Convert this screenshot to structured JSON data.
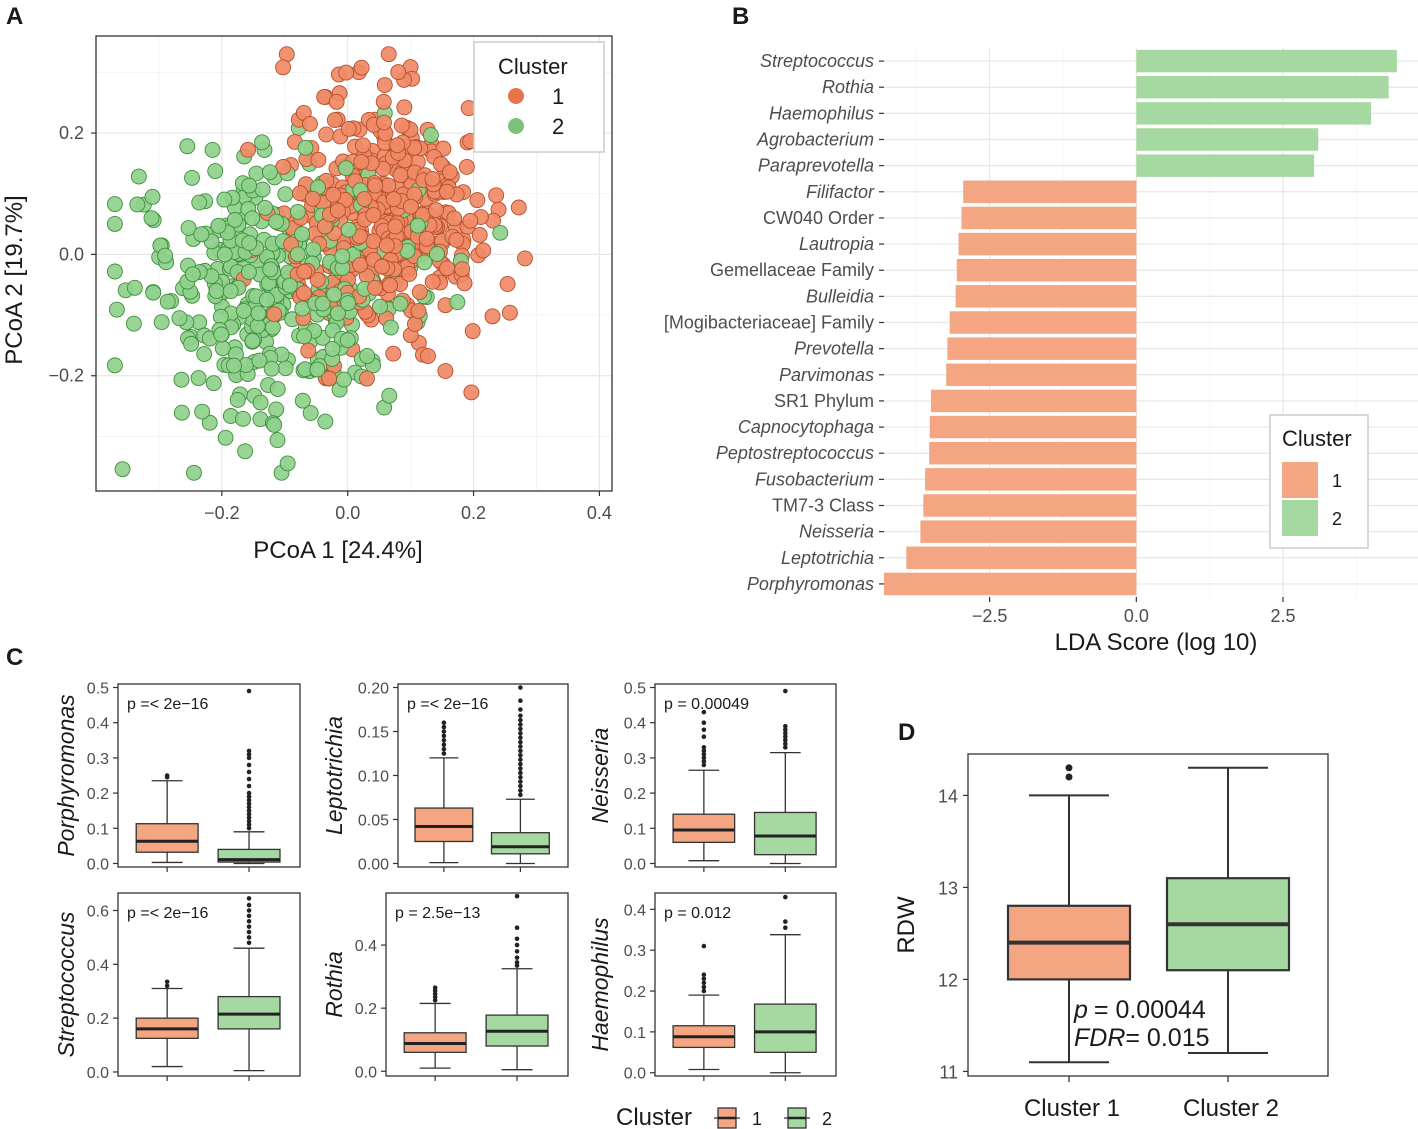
{
  "colors": {
    "cluster1": "#F4A582",
    "cluster1_dark": "#E8734A",
    "cluster2": "#A6D9A2",
    "cluster2_dark": "#7CC27A",
    "box_stroke": "#333333",
    "panel_border": "#333333"
  },
  "panels": {
    "a": "A",
    "b": "B",
    "c": "C",
    "d": "D"
  },
  "chart_data": [
    {
      "id": "A",
      "type": "scatter",
      "title": "",
      "xlabel": "PCoA 1  [24.4%]",
      "ylabel": "PCoA 2  [19.7%]",
      "xlim": [
        -0.4,
        0.42
      ],
      "ylim": [
        -0.39,
        0.36
      ],
      "xticks": [
        -0.2,
        0.0,
        0.2,
        0.4
      ],
      "xtick_labels": [
        "−0.2",
        "0.0",
        "0.2",
        "0.4"
      ],
      "yticks": [
        -0.2,
        0.0,
        0.2
      ],
      "ytick_labels": [
        "−0.2",
        "0.0",
        "0.2"
      ],
      "legend": {
        "title": "Cluster",
        "placement": "top-right",
        "entries": [
          "1",
          "2"
        ]
      },
      "series": [
        {
          "name": "1",
          "n_points": 430,
          "center": [
            0.05,
            0.07
          ],
          "spread": [
            0.1,
            0.12
          ]
        },
        {
          "name": "2",
          "n_points": 380,
          "center": [
            -0.11,
            -0.06
          ],
          "spread": [
            0.13,
            0.13
          ]
        }
      ]
    },
    {
      "id": "B",
      "type": "bar",
      "orientation": "horizontal",
      "xlabel": "LDA Score (log 10)",
      "xlim": [
        -4.3,
        4.8
      ],
      "xticks": [
        -2.5,
        0.0,
        2.5
      ],
      "xtick_labels": [
        "−2.5",
        "0.0",
        "2.5"
      ],
      "legend": {
        "title": "Cluster",
        "placement": "bottom-right",
        "entries": [
          "1",
          "2"
        ]
      },
      "categories": [
        "Streptococcus",
        "Rothia",
        "Haemophilus",
        "Agrobacterium",
        "Paraprevotella",
        "Filifactor",
        "CW040 Order",
        "Lautropia",
        "Gemellaceae Family",
        "Bulleidia",
        "[Mogibacteriaceae] Family",
        "Prevotella",
        "Parvimonas",
        "SR1 Phylum",
        "Capnocytophaga",
        "Peptostreptococcus",
        "Fusobacterium",
        "TM7-3 Class",
        "Neisseria",
        "Leptotrichia",
        "Porphyromonas"
      ],
      "italic": [
        true,
        true,
        true,
        true,
        true,
        true,
        false,
        true,
        false,
        true,
        false,
        true,
        true,
        false,
        true,
        true,
        true,
        false,
        true,
        true,
        true
      ],
      "values": [
        4.44,
        4.3,
        4.0,
        3.1,
        3.03,
        -2.95,
        -2.98,
        -3.03,
        -3.06,
        -3.08,
        -3.18,
        -3.22,
        -3.24,
        -3.5,
        -3.52,
        -3.53,
        -3.6,
        -3.63,
        -3.68,
        -3.92,
        -4.3
      ],
      "cluster": [
        "2",
        "2",
        "2",
        "2",
        "2",
        "1",
        "1",
        "1",
        "1",
        "1",
        "1",
        "1",
        "1",
        "1",
        "1",
        "1",
        "1",
        "1",
        "1",
        "1",
        "1"
      ]
    },
    {
      "id": "C",
      "type": "box",
      "legend": {
        "title": "Cluster",
        "placement": "bottom",
        "entries": [
          "1",
          "2"
        ]
      },
      "subplots": [
        {
          "ylabel": "Porphyromonas",
          "p_text": "p =< 2e−16",
          "ylim": [
            -0.01,
            0.51
          ],
          "yticks": [
            0.0,
            0.1,
            0.2,
            0.3,
            0.4,
            0.5
          ],
          "ytick_labels": [
            "0.0",
            "0.1",
            "0.2",
            "0.3",
            "0.4",
            "0.5"
          ],
          "boxes": [
            {
              "cluster": "1",
              "q1": 0.032,
              "median": 0.063,
              "q3": 0.113,
              "wlo": 0.003,
              "whi": 0.235,
              "outliers": [
                0.245,
                0.25
              ]
            },
            {
              "cluster": "2",
              "q1": 0.004,
              "median": 0.011,
              "q3": 0.04,
              "wlo": 0.0,
              "whi": 0.09,
              "outliers": [
                0.1,
                0.11,
                0.12,
                0.13,
                0.14,
                0.15,
                0.16,
                0.17,
                0.18,
                0.19,
                0.2,
                0.22,
                0.24,
                0.26,
                0.28,
                0.3,
                0.31,
                0.32,
                0.49
              ]
            }
          ]
        },
        {
          "ylabel": "Leptotrichia",
          "p_text": "p =< 2e−16",
          "ylim": [
            -0.004,
            0.204
          ],
          "yticks": [
            0.0,
            0.05,
            0.1,
            0.15,
            0.2
          ],
          "ytick_labels": [
            "0.00",
            "0.05",
            "0.10",
            "0.15",
            "0.20"
          ],
          "boxes": [
            {
              "cluster": "1",
              "q1": 0.025,
              "median": 0.042,
              "q3": 0.063,
              "wlo": 0.001,
              "whi": 0.12,
              "outliers": [
                0.125,
                0.13,
                0.135,
                0.14,
                0.145,
                0.15,
                0.155,
                0.16
              ]
            },
            {
              "cluster": "2",
              "q1": 0.011,
              "median": 0.019,
              "q3": 0.035,
              "wlo": 0.0,
              "whi": 0.073,
              "outliers": [
                0.078,
                0.083,
                0.088,
                0.093,
                0.098,
                0.103,
                0.108,
                0.113,
                0.118,
                0.123,
                0.128,
                0.133,
                0.138,
                0.143,
                0.148,
                0.153,
                0.158,
                0.163,
                0.168,
                0.175,
                0.185,
                0.2
              ]
            }
          ]
        },
        {
          "ylabel": "Neisseria",
          "p_text": "p = 0.00049",
          "ylim": [
            -0.01,
            0.51
          ],
          "yticks": [
            0.0,
            0.1,
            0.2,
            0.3,
            0.4,
            0.5
          ],
          "ytick_labels": [
            "0.0",
            "0.1",
            "0.2",
            "0.3",
            "0.4",
            "0.5"
          ],
          "boxes": [
            {
              "cluster": "1",
              "q1": 0.06,
              "median": 0.095,
              "q3": 0.14,
              "wlo": 0.008,
              "whi": 0.265,
              "outliers": [
                0.28,
                0.29,
                0.3,
                0.31,
                0.32,
                0.33,
                0.36,
                0.38,
                0.4,
                0.43
              ]
            },
            {
              "cluster": "2",
              "q1": 0.025,
              "median": 0.078,
              "q3": 0.145,
              "wlo": 0.0,
              "whi": 0.315,
              "outliers": [
                0.33,
                0.34,
                0.35,
                0.36,
                0.37,
                0.38,
                0.39,
                0.49
              ]
            }
          ]
        },
        {
          "ylabel": "Streptococcus",
          "p_text": "p =< 2e−16",
          "ylim": [
            -0.015,
            0.665
          ],
          "yticks": [
            0.0,
            0.2,
            0.4,
            0.6
          ],
          "ytick_labels": [
            "0.0",
            "0.2",
            "0.4",
            "0.6"
          ],
          "boxes": [
            {
              "cluster": "1",
              "q1": 0.125,
              "median": 0.16,
              "q3": 0.2,
              "wlo": 0.02,
              "whi": 0.31,
              "outliers": [
                0.32,
                0.335
              ]
            },
            {
              "cluster": "2",
              "q1": 0.16,
              "median": 0.215,
              "q3": 0.28,
              "wlo": 0.005,
              "whi": 0.46,
              "outliers": [
                0.48,
                0.5,
                0.52,
                0.54,
                0.56,
                0.58,
                0.6,
                0.62,
                0.645
              ]
            }
          ]
        },
        {
          "ylabel": "Rothia",
          "p_text": "p = 2.5e−13",
          "ylim": [
            -0.015,
            0.565
          ],
          "yticks": [
            0.0,
            0.2,
            0.4
          ],
          "ytick_labels": [
            "0.0",
            "0.2",
            "0.4"
          ],
          "boxes": [
            {
              "cluster": "1",
              "q1": 0.06,
              "median": 0.088,
              "q3": 0.122,
              "wlo": 0.01,
              "whi": 0.215,
              "outliers": [
                0.225,
                0.235,
                0.245,
                0.255,
                0.265
              ]
            },
            {
              "cluster": "2",
              "q1": 0.08,
              "median": 0.127,
              "q3": 0.178,
              "wlo": 0.005,
              "whi": 0.325,
              "outliers": [
                0.335,
                0.345,
                0.36,
                0.38,
                0.4,
                0.42,
                0.455,
                0.555
              ]
            }
          ]
        },
        {
          "ylabel": "Haemophilus",
          "p_text": "p = 0.012",
          "ylim": [
            -0.008,
            0.44
          ],
          "yticks": [
            0.0,
            0.1,
            0.2,
            0.3,
            0.4
          ],
          "ytick_labels": [
            "0.0",
            "0.1",
            "0.2",
            "0.3",
            "0.4"
          ],
          "boxes": [
            {
              "cluster": "1",
              "q1": 0.062,
              "median": 0.088,
              "q3": 0.115,
              "wlo": 0.008,
              "whi": 0.19,
              "outliers": [
                0.2,
                0.21,
                0.22,
                0.23,
                0.24,
                0.31
              ]
            },
            {
              "cluster": "2",
              "q1": 0.05,
              "median": 0.1,
              "q3": 0.168,
              "wlo": 0.0,
              "whi": 0.338,
              "outliers": [
                0.355,
                0.37,
                0.43
              ]
            }
          ]
        }
      ]
    },
    {
      "id": "D",
      "type": "box",
      "ylabel": "RDW",
      "categories": [
        "Cluster 1",
        "Cluster 2"
      ],
      "ylim": [
        10.95,
        14.45
      ],
      "yticks": [
        11,
        12,
        13,
        14
      ],
      "ytick_labels": [
        "11",
        "12",
        "13",
        "14"
      ],
      "p_text": "p",
      "p_value": "= 0.00044",
      "fdr_text": "FDR",
      "fdr_value": "= 0.015",
      "boxes": [
        {
          "cluster": "1",
          "q1": 12.0,
          "median": 12.4,
          "q3": 12.8,
          "wlo": 11.1,
          "whi": 14.0,
          "outliers": [
            14.2,
            14.3
          ]
        },
        {
          "cluster": "2",
          "q1": 12.1,
          "median": 12.6,
          "q3": 13.1,
          "wlo": 11.2,
          "whi": 14.3,
          "outliers": []
        }
      ]
    }
  ]
}
